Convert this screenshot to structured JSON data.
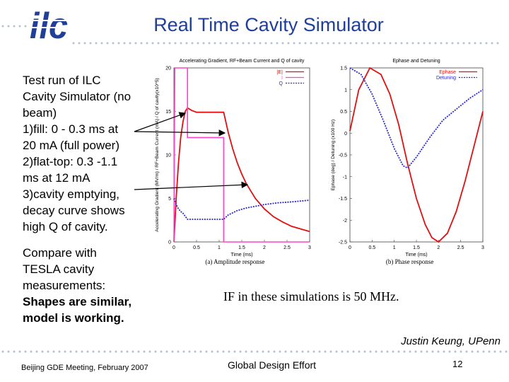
{
  "slide": {
    "title": "Real Time Cavity Simulator",
    "logo_text": "ilc",
    "body_lines": [
      "Test run of ILC",
      "Cavity Simulator (no",
      "beam)",
      "1)fill: 0 - 0.3 ms at",
      "20 mA (full power)",
      "2)flat-top: 0.3 -1.1",
      "ms at 12 mA",
      "3)cavity emptying,",
      "decay curve shows",
      "high Q of cavity."
    ],
    "compare_lines": [
      "Compare with",
      "TESLA cavity",
      "measurements:"
    ],
    "conclusion_lines": [
      "Shapes are similar,",
      "model is working."
    ],
    "if_note": "IF in these simulations is 50 MHz.",
    "author": "Justin Keung, UPenn",
    "footer_left": "Beijing GDE Meeting, February 2007",
    "footer_center": "Global Design Effort",
    "page_number": "12",
    "colors": {
      "title": "#1f3f99",
      "logo": "#1f3f99",
      "red": "#e01010",
      "blue": "#2a2acc"
    }
  },
  "chart_data": [
    {
      "type": "line",
      "title": "Accelerating Gradient, RF+Beam Current and Q of cavity",
      "xlabel": "Time (ms)",
      "ylabel": "Accelerating Gradient (MV/m) / RF+Beam Current (mA) / Q of cavity(x10^5)",
      "caption": "(a) Amplitude response",
      "xlim": [
        0,
        3
      ],
      "ylim": [
        0,
        20
      ],
      "x_ticks": [
        "0",
        "0.5",
        "1",
        "1.5",
        "2",
        "2.5",
        "3"
      ],
      "y_ticks": [
        "0",
        "5",
        "10",
        "15",
        "20"
      ],
      "legend_labels": [
        "|E|",
        "I",
        "Q"
      ],
      "series": [
        {
          "name": "|E|",
          "points": [
            [
              0,
              0
            ],
            [
              0.05,
              5
            ],
            [
              0.1,
              9
            ],
            [
              0.15,
              12
            ],
            [
              0.2,
              13.8
            ],
            [
              0.25,
              15
            ],
            [
              0.3,
              15.4
            ],
            [
              0.4,
              15.1
            ],
            [
              0.5,
              14.9
            ],
            [
              0.7,
              14.9
            ],
            [
              1.1,
              14.9
            ],
            [
              1.2,
              12.6
            ],
            [
              1.3,
              10.7
            ],
            [
              1.4,
              9.1
            ],
            [
              1.5,
              7.8
            ],
            [
              1.6,
              6.7
            ],
            [
              1.8,
              5
            ],
            [
              2,
              3.8
            ],
            [
              2.2,
              2.9
            ],
            [
              2.4,
              2.3
            ],
            [
              2.6,
              1.8
            ],
            [
              2.8,
              1.5
            ],
            [
              3,
              1.2
            ]
          ]
        },
        {
          "name": "I",
          "points": [
            [
              0,
              0
            ],
            [
              0.02,
              20
            ],
            [
              0.3,
              20
            ],
            [
              0.3,
              12
            ],
            [
              1.1,
              12
            ],
            [
              1.1,
              0
            ],
            [
              3,
              0
            ]
          ]
        },
        {
          "name": "Q",
          "points": [
            [
              0,
              5
            ],
            [
              0.05,
              4.3
            ],
            [
              0.1,
              3.8
            ],
            [
              0.15,
              3.5
            ],
            [
              0.2,
              3.3
            ],
            [
              0.3,
              2.6
            ],
            [
              0.5,
              2.6
            ],
            [
              0.8,
              2.6
            ],
            [
              1.1,
              2.6
            ],
            [
              1.2,
              3.1
            ],
            [
              1.4,
              3.6
            ],
            [
              1.6,
              3.9
            ],
            [
              1.8,
              4.1
            ],
            [
              2,
              4.3
            ],
            [
              2.3,
              4.5
            ],
            [
              2.6,
              4.6
            ],
            [
              3,
              4.8
            ]
          ]
        }
      ]
    },
    {
      "type": "line",
      "title": "Ephase and Detuning",
      "xlabel": "Time (ms)",
      "ylabel": "Ephase (deg) / Detuning (x100 Hz)",
      "caption": "(b) Phase response",
      "xlim": [
        0,
        3
      ],
      "ylim": [
        -2.5,
        1.5
      ],
      "x_ticks": [
        "0",
        "0.5",
        "1",
        "1.5",
        "2",
        "2.5",
        "3"
      ],
      "y_ticks": [
        "-2.5",
        "-2",
        "-1.5",
        "-1",
        "-0.5",
        "0",
        "0.5",
        "1",
        "1.5"
      ],
      "legend_labels": [
        "Ephase",
        "Detuning"
      ],
      "series": [
        {
          "name": "Ephase",
          "points": [
            [
              0,
              0.05
            ],
            [
              0.2,
              1
            ],
            [
              0.45,
              1.5
            ],
            [
              0.7,
              1.35
            ],
            [
              0.9,
              0.9
            ],
            [
              1.1,
              0.2
            ],
            [
              1.3,
              -0.7
            ],
            [
              1.5,
              -1.5
            ],
            [
              1.7,
              -2.1
            ],
            [
              1.85,
              -2.4
            ],
            [
              2,
              -2.5
            ],
            [
              2.2,
              -2.3
            ],
            [
              2.4,
              -1.8
            ],
            [
              2.6,
              -1.1
            ],
            [
              2.8,
              -0.3
            ],
            [
              3,
              0.5
            ]
          ]
        },
        {
          "name": "Detuning",
          "points": [
            [
              0,
              1.5
            ],
            [
              0.25,
              1.35
            ],
            [
              0.5,
              0.9
            ],
            [
              0.75,
              0.3
            ],
            [
              1,
              -0.35
            ],
            [
              1.2,
              -0.75
            ],
            [
              1.3,
              -0.8
            ],
            [
              1.5,
              -0.55
            ],
            [
              1.8,
              -0.1
            ],
            [
              2.1,
              0.3
            ],
            [
              2.4,
              0.55
            ],
            [
              2.7,
              0.8
            ],
            [
              3,
              1
            ]
          ]
        }
      ]
    }
  ]
}
